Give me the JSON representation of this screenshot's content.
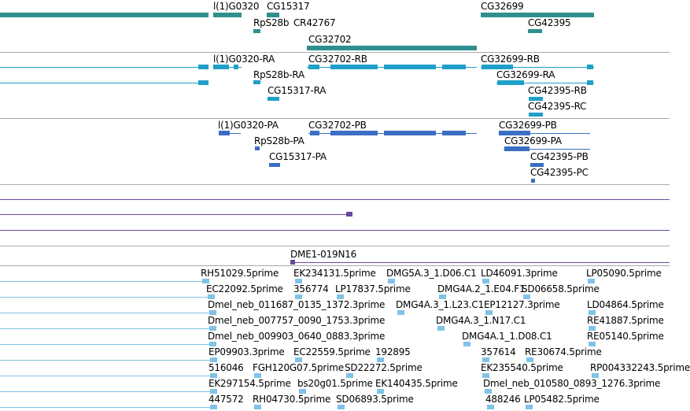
{
  "colors": {
    "gene": "#2f8f8f",
    "transcript": "#1fa0c8",
    "protein": "#3a6fc4",
    "est": "#7fc3e6",
    "clone": "#6a4a9e"
  },
  "genes": {
    "l1g0320": "l(1)G0320",
    "cg15317": "CG15317",
    "cg32699": "CG32699",
    "rps28b": "RpS28b",
    "cr42767": "CR42767",
    "cg42395": "CG42395",
    "cg32702": "CG32702"
  },
  "transcripts": {
    "l1g0320_ra": "l(1)G0320-RA",
    "cg32702_rb": "CG32702-RB",
    "cg32699_rb": "CG32699-RB",
    "rps28b_ra": "RpS28b-RA",
    "cg32699_ra": "CG32699-RA",
    "cg15317_ra": "CG15317-RA",
    "cg42395_rb": "CG42395-RB",
    "cg42395_rc": "CG42395-RC"
  },
  "proteins": {
    "l1g0320_pa": "l(1)G0320-PA",
    "cg32702_pb": "CG32702-PB",
    "cg32699_pb": "CG32699-PB",
    "rps28b_pa": "RpS28b-PA",
    "cg32699_pa": "CG32699-PA",
    "cg15317_pa": "CG15317-PA",
    "cg42395_pb": "CG42395-PB",
    "cg42395_pc": "CG42395-PC"
  },
  "clone": {
    "name": "DME1-019N16"
  },
  "ests": [
    {
      "row": 0,
      "items": [
        "RH51029.5prime",
        "EK234131.5prime",
        "DMG5A.3_1.D06.C1",
        "LD46091.3prime",
        "LP05090.5prime"
      ]
    },
    {
      "row": 1,
      "items": [
        "EC22092.5prime",
        "356774",
        "LP17837.5prime",
        "DMG4A.2_1.E04.F1",
        "SD06658.5prime"
      ]
    },
    {
      "row": 2,
      "items": [
        "Dmel_neb_011687_0135_1372.3prime",
        "DMG4A.3_1.L23.C1",
        "EP12127.3prime",
        "LD04864.5prime"
      ]
    },
    {
      "row": 3,
      "items": [
        "Dmel_neb_007757_0090_1753.3prime",
        "DMG4A.3_1.N17.C1",
        "RE41887.5prime"
      ]
    },
    {
      "row": 4,
      "items": [
        "Dmel_neb_009903_0640_0883.3prime",
        "DMG4A.1_1.D08.C1",
        "RE05140.5prime"
      ]
    },
    {
      "row": 5,
      "items": [
        "EP09903.3prime",
        "EC22559.5prime",
        "192895",
        "357614",
        "RE30674.5prime"
      ]
    },
    {
      "row": 6,
      "items": [
        "516046",
        "FGH120G07.5prime",
        "SD22272.5prime",
        "EK235540.5prime",
        "RP004332243.5prime"
      ]
    },
    {
      "row": 7,
      "items": [
        "EK297154.5prime",
        "bs20g01.5prime",
        "EK140435.5prime",
        "Dmel_neb_010580_0893_1276.3prime"
      ]
    },
    {
      "row": 8,
      "items": [
        "447572",
        "RH04730.5prime",
        "SD06893.5prime",
        "488246",
        "LP05482.5prime"
      ]
    }
  ]
}
